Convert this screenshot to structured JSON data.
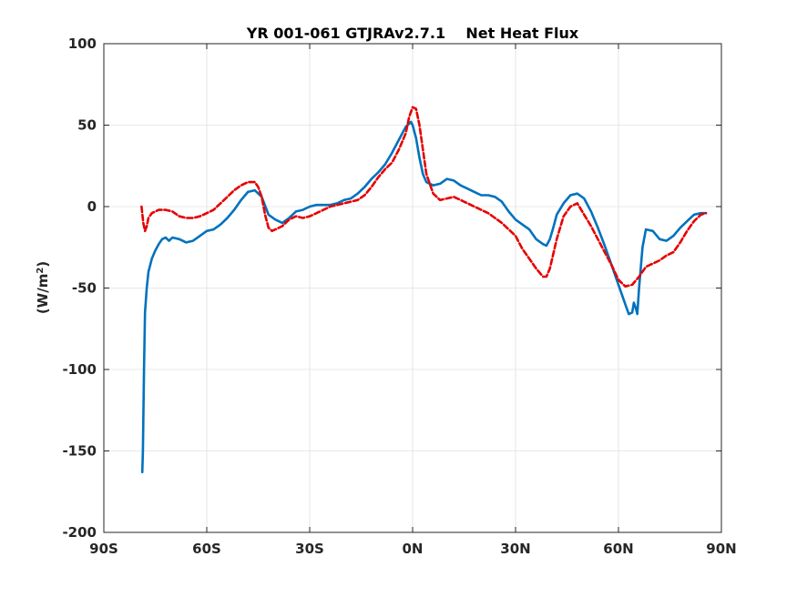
{
  "chart_data": {
    "type": "line",
    "title": "YR 001-061 GTJRAv2.7.1    Net Heat Flux",
    "xlabel": "",
    "ylabel_main": "(W/m",
    "ylabel_sup": "2",
    "ylabel_close": ")",
    "xlim": [
      -90,
      90
    ],
    "ylim": [
      -200,
      100
    ],
    "xticks": [
      -90,
      -60,
      -30,
      0,
      30,
      60,
      90
    ],
    "xtick_labels": [
      "90S",
      "60S",
      "30S",
      "0N",
      "30N",
      "60N",
      "90N"
    ],
    "yticks": [
      -200,
      -150,
      -100,
      -50,
      0,
      50,
      100
    ],
    "ytick_labels": [
      "-200",
      "-150",
      "-100",
      "-50",
      "0",
      "50",
      "100"
    ],
    "grid": true,
    "colors": {
      "series1": "#0072BD",
      "series2": "#E60000",
      "grid": "#e0e0e0",
      "axis": "#262626"
    },
    "series": [
      {
        "style": "solid",
        "x": [
          -78.8,
          -78.6,
          -78.3,
          -78,
          -77.5,
          -77,
          -76,
          -75,
          -74,
          -73,
          -72,
          -71,
          -70,
          -68,
          -66,
          -64,
          -62,
          -60,
          -58,
          -56,
          -54,
          -52,
          -50,
          -48,
          -46,
          -44,
          -42,
          -40,
          -38,
          -36,
          -34,
          -32,
          -30,
          -28,
          -26,
          -24,
          -22,
          -20,
          -18,
          -16,
          -14,
          -12,
          -10,
          -8,
          -6,
          -4,
          -2,
          -0.5,
          0,
          1,
          2,
          3,
          4,
          6,
          8,
          10,
          12,
          14,
          16,
          18,
          20,
          22,
          24,
          26,
          28,
          30,
          32,
          34,
          36,
          38,
          39,
          40,
          41,
          42,
          44,
          46,
          48,
          50,
          52,
          54,
          56,
          58,
          60,
          62,
          63,
          64,
          64.5,
          65,
          65.5,
          66,
          67,
          68,
          70,
          72,
          74,
          76,
          78,
          80,
          82,
          84,
          85.5
        ],
        "y": [
          -163,
          -150,
          -100,
          -65,
          -50,
          -40,
          -32,
          -27,
          -23,
          -20,
          -19,
          -21,
          -19,
          -20,
          -22,
          -21,
          -18,
          -15,
          -14,
          -11,
          -7,
          -2,
          4,
          9,
          10,
          6,
          -5,
          -8,
          -10,
          -7,
          -3,
          -2,
          0,
          1,
          1,
          1,
          2,
          4,
          5,
          8,
          12,
          17,
          21,
          26,
          33,
          41,
          49,
          52,
          50,
          42,
          30,
          20,
          15,
          13,
          14,
          17,
          16,
          13,
          11,
          9,
          7,
          7,
          6,
          3,
          -3,
          -8,
          -11,
          -14,
          -20,
          -23,
          -24,
          -20,
          -13,
          -5,
          2,
          7,
          8,
          5,
          -3,
          -13,
          -24,
          -36,
          -48,
          -60,
          -66,
          -65,
          -59,
          -62,
          -66,
          -50,
          -25,
          -14,
          -15,
          -20,
          -21,
          -18,
          -13,
          -9,
          -5,
          -4,
          -4
        ]
      },
      {
        "style": "dashed",
        "x": [
          -79,
          -78.5,
          -78,
          -77.5,
          -77,
          -76,
          -75,
          -74,
          -72,
          -70,
          -68,
          -66,
          -64,
          -62,
          -60,
          -58,
          -56,
          -54,
          -52,
          -50,
          -48,
          -46,
          -45,
          -44,
          -43,
          -42,
          -41,
          -40,
          -38,
          -36,
          -34,
          -32,
          -30,
          -28,
          -26,
          -24,
          -22,
          -20,
          -18,
          -16,
          -14,
          -12,
          -10,
          -8,
          -6,
          -4,
          -2,
          -1,
          0,
          1,
          2,
          3,
          4,
          6,
          8,
          10,
          12,
          14,
          16,
          18,
          20,
          22,
          24,
          26,
          28,
          30,
          32,
          34,
          36,
          38,
          39,
          40,
          42,
          44,
          46,
          48,
          50,
          52,
          54,
          56,
          58,
          60,
          62,
          64,
          66,
          68,
          70,
          72,
          74,
          76,
          78,
          80,
          82,
          84,
          85.5
        ],
        "y": [
          0,
          -10,
          -15,
          -12,
          -7,
          -4,
          -3,
          -2,
          -2,
          -3,
          -6,
          -7,
          -7,
          -6,
          -4,
          -2,
          2,
          6,
          10,
          13,
          15,
          15,
          12,
          6,
          -5,
          -13,
          -15,
          -14,
          -12,
          -8,
          -6,
          -7,
          -6,
          -4,
          -2,
          0,
          1,
          2,
          3,
          4,
          7,
          12,
          18,
          23,
          27,
          35,
          45,
          55,
          61,
          60,
          50,
          35,
          20,
          8,
          4,
          5,
          6,
          4,
          2,
          0,
          -2,
          -4,
          -7,
          -10,
          -14,
          -18,
          -26,
          -32,
          -38,
          -43,
          -43,
          -38,
          -20,
          -6,
          0,
          2,
          -5,
          -12,
          -20,
          -28,
          -36,
          -45,
          -49,
          -48,
          -43,
          -37,
          -35,
          -33,
          -30,
          -28,
          -22,
          -15,
          -9,
          -5,
          -4
        ]
      }
    ]
  }
}
